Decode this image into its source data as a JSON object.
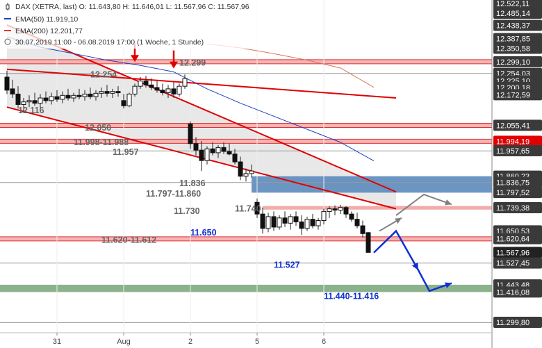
{
  "chart_data": {
    "type": "candlestick",
    "instrument": "DAX (XETRA, last)",
    "ohlc_text": "O: 11.643,80  H: 11.646,01  L: 11.567,96  C: 11.567,96",
    "period_text": "30.07.2019 11:00 - 06.08.2019 17:00   (1 Woche, 1 Stunde)",
    "legend": [
      {
        "label": "DAX (XETRA, last)",
        "color": "#333333"
      },
      {
        "label": "EMA(50)",
        "value": "11.919,10",
        "color": "#1f3fbf"
      },
      {
        "label": "EMA(200)",
        "value": "12.201,77",
        "color": "#e03a2a"
      }
    ],
    "y_range": [
      11260,
      12525
    ],
    "y_ticks": [
      {
        "label": "12.522,11",
        "value": 12522.11
      },
      {
        "label": "12.485,14",
        "value": 12485.14
      },
      {
        "label": "12.438,37",
        "value": 12438.37
      },
      {
        "label": "12.387,85",
        "value": 12387.85
      },
      {
        "label": "12.350,58",
        "value": 12350.58
      },
      {
        "label": "12.299,10",
        "value": 12299.1
      },
      {
        "label": "12.254,03",
        "value": 12254.03
      },
      {
        "label": "12.225,10",
        "value": 12225.1
      },
      {
        "label": "12.200,18",
        "value": 12200.18
      },
      {
        "label": "12.172,59",
        "value": 12172.59
      },
      {
        "label": "12.055,41",
        "value": 12055.41
      },
      {
        "label": "11.994,19",
        "value": 11994.19,
        "highlight": true
      },
      {
        "label": "11.957,65",
        "value": 11957.65
      },
      {
        "label": "11.860,23",
        "value": 11860.23
      },
      {
        "label": "11.836,75",
        "value": 11836.75
      },
      {
        "label": "11.797,52",
        "value": 11797.52
      },
      {
        "label": "11.739,38",
        "value": 11739.38
      },
      {
        "label": "11.650,53",
        "value": 11650.53
      },
      {
        "label": "11.620,64",
        "value": 11620.64
      },
      {
        "label": "11.567,96",
        "value": 11567.96,
        "current": true
      },
      {
        "label": "11.527,45",
        "value": 11527.45
      },
      {
        "label": "11.443,48",
        "value": 11443.48
      },
      {
        "label": "11.416,08",
        "value": 11416.08
      },
      {
        "label": "11.299,80",
        "value": 11299.8
      }
    ],
    "x_ticks": [
      {
        "label": "31",
        "index": 9
      },
      {
        "label": "Aug",
        "index": 21
      },
      {
        "label": "2",
        "index": 33
      },
      {
        "label": "5",
        "index": 45
      },
      {
        "label": "6",
        "index": 57
      }
    ],
    "candles": [
      [
        12240,
        12265,
        12175,
        12190
      ],
      [
        12195,
        12230,
        12160,
        12175
      ],
      [
        12175,
        12205,
        12120,
        12135
      ],
      [
        12135,
        12160,
        12110,
        12145
      ],
      [
        12145,
        12170,
        12125,
        12150
      ],
      [
        12150,
        12180,
        12130,
        12140
      ],
      [
        12140,
        12175,
        12120,
        12160
      ],
      [
        12160,
        12185,
        12140,
        12150
      ],
      [
        12150,
        12180,
        12135,
        12165
      ],
      [
        12165,
        12190,
        12145,
        12155
      ],
      [
        12155,
        12185,
        12140,
        12170
      ],
      [
        12170,
        12195,
        12150,
        12160
      ],
      [
        12160,
        12180,
        12145,
        12170
      ],
      [
        12170,
        12195,
        12155,
        12165
      ],
      [
        12165,
        12190,
        12150,
        12175
      ],
      [
        12175,
        12200,
        12155,
        12165
      ],
      [
        12165,
        12190,
        12150,
        12178
      ],
      [
        12178,
        12200,
        12160,
        12185
      ],
      [
        12185,
        12210,
        12165,
        12178
      ],
      [
        12178,
        12195,
        12160,
        12185
      ],
      [
        12185,
        12205,
        12165,
        12180
      ],
      [
        12150,
        12175,
        12120,
        12130
      ],
      [
        12130,
        12180,
        12125,
        12175
      ],
      [
        12175,
        12215,
        12165,
        12205
      ],
      [
        12205,
        12240,
        12195,
        12225
      ],
      [
        12225,
        12245,
        12200,
        12210
      ],
      [
        12210,
        12235,
        12190,
        12200
      ],
      [
        12200,
        12225,
        12180,
        12190
      ],
      [
        12190,
        12215,
        12170,
        12180
      ],
      [
        12180,
        12210,
        12160,
        12195
      ],
      [
        12195,
        12220,
        12160,
        12175
      ],
      [
        12175,
        12215,
        12165,
        12205
      ],
      [
        12205,
        12250,
        12195,
        12235
      ],
      [
        12060,
        12070,
        11965,
        11985
      ],
      [
        11985,
        12010,
        11940,
        11960
      ],
      [
        11960,
        11995,
        11880,
        11920
      ],
      [
        11920,
        11975,
        11905,
        11965
      ],
      [
        11965,
        11990,
        11940,
        11950
      ],
      [
        11950,
        11980,
        11930,
        11970
      ],
      [
        11970,
        11990,
        11945,
        11955
      ],
      [
        11955,
        11985,
        11940,
        11945
      ],
      [
        11945,
        11965,
        11905,
        11915
      ],
      [
        11915,
        11935,
        11845,
        11860
      ],
      [
        11860,
        11890,
        11840,
        11870
      ],
      [
        11870,
        11905,
        11855,
        11880
      ],
      [
        11760,
        11775,
        11700,
        11715
      ],
      [
        11715,
        11740,
        11640,
        11660
      ],
      [
        11660,
        11720,
        11645,
        11705
      ],
      [
        11705,
        11725,
        11650,
        11665
      ],
      [
        11665,
        11710,
        11655,
        11700
      ],
      [
        11700,
        11725,
        11665,
        11680
      ],
      [
        11680,
        11715,
        11655,
        11705
      ],
      [
        11705,
        11725,
        11670,
        11685
      ],
      [
        11685,
        11710,
        11635,
        11660
      ],
      [
        11660,
        11705,
        11650,
        11695
      ],
      [
        11695,
        11715,
        11660,
        11670
      ],
      [
        11670,
        11700,
        11655,
        11690
      ],
      [
        11690,
        11735,
        11675,
        11725
      ],
      [
        11725,
        11745,
        11700,
        11735
      ],
      [
        11735,
        11748,
        11710,
        11730
      ],
      [
        11730,
        11750,
        11715,
        11740
      ],
      [
        11740,
        11745,
        11700,
        11715
      ],
      [
        11715,
        11725,
        11685,
        11695
      ],
      [
        11695,
        11720,
        11660,
        11670
      ],
      [
        11670,
        11690,
        11625,
        11640
      ],
      [
        11643.8,
        11646.01,
        11567.96,
        11567.96
      ]
    ],
    "ema50": [
      [
        0,
        12395
      ],
      [
        6,
        12355
      ],
      [
        12,
        12330
      ],
      [
        18,
        12305
      ],
      [
        24,
        12285
      ],
      [
        30,
        12260
      ],
      [
        36,
        12195
      ],
      [
        42,
        12140
      ],
      [
        48,
        12090
      ],
      [
        54,
        12040
      ],
      [
        60,
        11990
      ],
      [
        66,
        11919
      ]
    ],
    "ema200": [
      [
        36,
        12368
      ],
      [
        42,
        12352
      ],
      [
        48,
        12330
      ],
      [
        54,
        12305
      ],
      [
        60,
        12275
      ],
      [
        66,
        12201
      ]
    ],
    "levels": [
      {
        "value": 12299,
        "style": "red-band"
      },
      {
        "value": 12254,
        "style": "gray-line"
      },
      {
        "value": 12055,
        "style": "red-band"
      },
      {
        "value": 11994,
        "style": "red-band"
      },
      {
        "value": 11957,
        "style": "gray-line"
      },
      {
        "value": 11836,
        "style": "gray-line"
      },
      {
        "value": 11620,
        "style": "red-band"
      },
      {
        "value": 11527,
        "style": "gray-line"
      },
      {
        "value": 11299,
        "style": "gray-line"
      }
    ],
    "zones": [
      {
        "from": 11998,
        "to": 11988,
        "color": "#e8e8e8"
      },
      {
        "from": 11860,
        "to": 11797,
        "color": "#5b89bd"
      },
      {
        "from": 11746,
        "to": 11732,
        "color": "#f1a2a2"
      },
      {
        "from": 11444,
        "to": 11416,
        "color": "#7faa7f"
      }
    ],
    "trendlines": [
      {
        "from": [
          0,
          12440
        ],
        "to": [
          70,
          11800
        ],
        "color": "#e00000"
      },
      {
        "from": [
          0,
          12270
        ],
        "to": [
          70,
          12160
        ],
        "color": "#e00000"
      },
      {
        "from": [
          0,
          12125
        ],
        "to": [
          70,
          11735
        ],
        "color": "#e00000"
      }
    ],
    "annotations": [
      {
        "text": "12.299",
        "color": "#666666",
        "x": 31,
        "y": 12295
      },
      {
        "text": "12.254",
        "color": "#666666",
        "x": 15,
        "y": 12250
      },
      {
        "text": "12.116",
        "color": "#666666",
        "x": 2,
        "y": 12112
      },
      {
        "text": "12.050",
        "color": "#666666",
        "x": 14,
        "y": 12046
      },
      {
        "text": "11.998-11.988",
        "color": "#666666",
        "x": 12,
        "y": 11990
      },
      {
        "text": "11.957",
        "color": "#666666",
        "x": 19,
        "y": 11953
      },
      {
        "text": "11.836",
        "color": "#666666",
        "x": 31,
        "y": 11832
      },
      {
        "text": "11.797-11.860",
        "color": "#666666",
        "x": 25,
        "y": 11793
      },
      {
        "text": "11.740",
        "color": "#666666",
        "x": 41,
        "y": 11736
      },
      {
        "text": "11.730",
        "color": "#666666",
        "x": 30,
        "y": 11726
      },
      {
        "text": "11.650",
        "color": "#1030d0",
        "x": 33,
        "y": 11644
      },
      {
        "text": "11.620-11.612",
        "color": "#666666",
        "x": 17,
        "y": 11616
      },
      {
        "text": "11.527",
        "color": "#1030d0",
        "x": 48,
        "y": 11520
      },
      {
        "text": "11.440-11.416",
        "color": "#1030d0",
        "x": 57,
        "y": 11400
      }
    ],
    "projections": [
      {
        "color": "#1030d0",
        "points": [
          [
            66,
            11567
          ],
          [
            70,
            11650
          ],
          [
            74,
            11500
          ],
          [
            76,
            11420
          ],
          [
            80,
            11450
          ]
        ]
      },
      {
        "color": "#808080",
        "points": [
          [
            67,
            11650
          ],
          [
            71,
            11700
          ]
        ]
      },
      {
        "color": "#808080",
        "points": [
          [
            70,
            11710
          ],
          [
            75,
            11790
          ],
          [
            80,
            11752
          ]
        ]
      }
    ]
  }
}
